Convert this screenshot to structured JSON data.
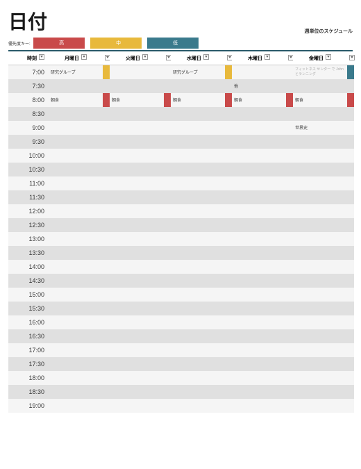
{
  "header": {
    "title": "日付",
    "subtitle": "週単位のスケジュール",
    "priority_label": "優先度キー:"
  },
  "priority": {
    "high": {
      "label": "高",
      "color": "#c94a4a"
    },
    "mid": {
      "label": "中",
      "color": "#e8b93c"
    },
    "low": {
      "label": "低",
      "color": "#3a7a8c"
    }
  },
  "columns": {
    "time": "時刻",
    "days": [
      "月曜日",
      "火曜日",
      "水曜日",
      "木曜日",
      "金曜日"
    ]
  },
  "times": [
    "7:00",
    "7:30",
    "8:00",
    "8:30",
    "9:00",
    "9:30",
    "10:00",
    "10:30",
    "11:00",
    "11:30",
    "12:00",
    "12:30",
    "13:00",
    "13:30",
    "14:00",
    "14:30",
    "15:00",
    "15:30",
    "16:00",
    "16:30",
    "17:00",
    "17:30",
    "18:00",
    "18:30",
    "19:00"
  ],
  "events": {
    "0": {
      "0": {
        "text": "研究グループ",
        "mark": "#e8b93c"
      },
      "2": {
        "text": "研究グループ",
        "mark": "#e8b93c"
      },
      "4": {
        "text": "フィットネス センター で John とランニング",
        "mark": "#3a7a8c",
        "faded": true
      }
    },
    "1": {
      "3": {
        "text": "他",
        "mark": ""
      }
    },
    "2": {
      "0": {
        "text": "朝食",
        "mark": "#c94a4a"
      },
      "1": {
        "text": "朝食",
        "mark": "#c94a4a"
      },
      "2": {
        "text": "朝食",
        "mark": "#c94a4a"
      },
      "3": {
        "text": "朝食",
        "mark": "#c94a4a"
      },
      "4": {
        "text": "朝食",
        "mark": "#c94a4a"
      }
    },
    "4": {
      "4": {
        "text": "世界史",
        "mark": ""
      }
    }
  },
  "colors": {
    "header_rule": "#2a5a6a",
    "row_odd": "#f5f5f5",
    "row_even": "#e0e0e0"
  }
}
